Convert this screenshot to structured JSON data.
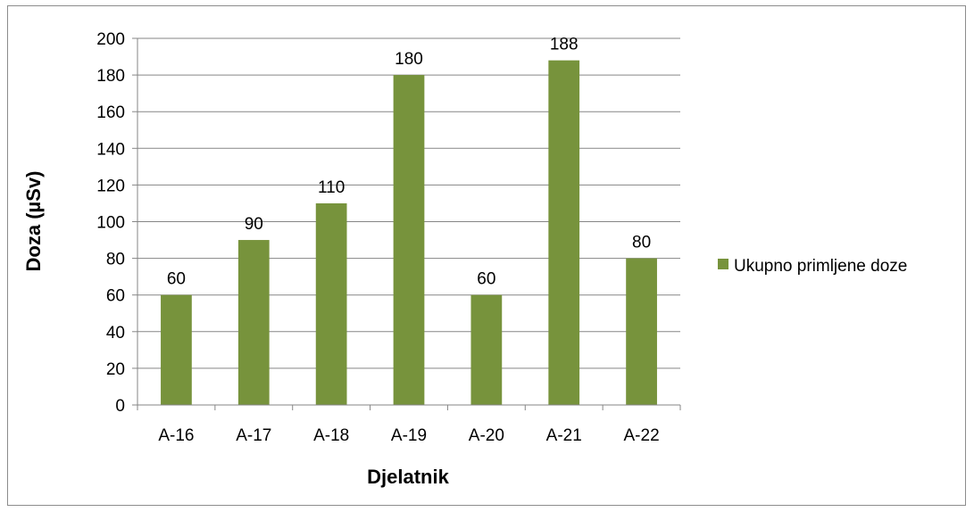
{
  "chart_data": {
    "type": "bar",
    "categories": [
      "A-16",
      "A-17",
      "A-18",
      "A-19",
      "A-20",
      "A-21",
      "A-22"
    ],
    "series": [
      {
        "name": "Ukupno primljene doze",
        "values": [
          60,
          90,
          110,
          180,
          60,
          188,
          80
        ],
        "color": "#77933c"
      }
    ],
    "data_labels": [
      "60",
      "90",
      "110",
      "180",
      "60",
      "188",
      "80"
    ],
    "xlabel": "Djelatnik",
    "ylabel": "Doza (µSv)",
    "ylim": [
      0,
      200
    ],
    "yticks": [
      0,
      20,
      40,
      60,
      80,
      100,
      120,
      140,
      160,
      180,
      200
    ],
    "grid": true,
    "legend_position": "right",
    "axis_color": "#868686",
    "grid_color": "#868686"
  }
}
